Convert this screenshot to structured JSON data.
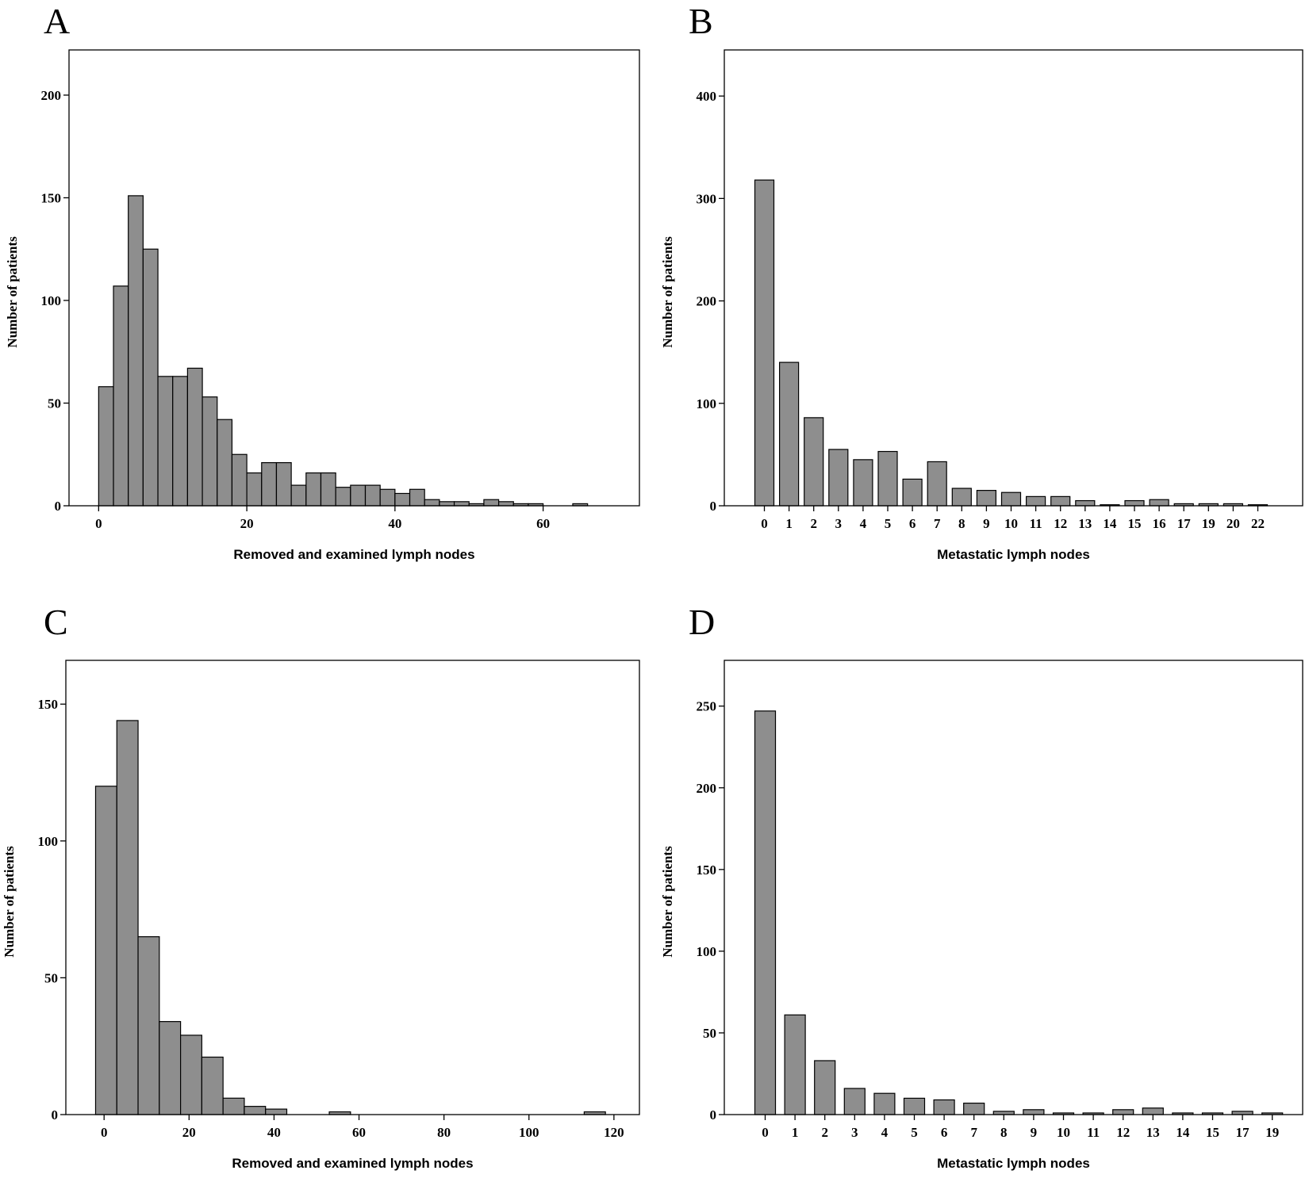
{
  "chart_data": [
    {
      "panel": "A",
      "type": "bar",
      "subtype": "histogram",
      "xlabel": "Removed and examined lymph nodes",
      "ylabel": "Number of patients",
      "xlim": [
        -4,
        73
      ],
      "ylim": [
        0,
        222
      ],
      "xticks": [
        0,
        20,
        40,
        60
      ],
      "yticks": [
        0,
        50,
        100,
        150,
        200
      ],
      "bin_width": 2,
      "bin_starts": [
        0,
        2,
        4,
        6,
        8,
        10,
        12,
        14,
        16,
        18,
        20,
        22,
        24,
        26,
        28,
        30,
        32,
        34,
        36,
        38,
        40,
        42,
        44,
        46,
        48,
        50,
        52,
        54,
        56,
        58,
        60,
        62,
        64
      ],
      "values": [
        58,
        107,
        151,
        125,
        63,
        63,
        67,
        53,
        42,
        25,
        16,
        21,
        21,
        10,
        16,
        16,
        9,
        10,
        10,
        8,
        6,
        8,
        3,
        2,
        2,
        1,
        3,
        2,
        1,
        1,
        0,
        0,
        1
      ]
    },
    {
      "panel": "B",
      "type": "bar",
      "xlabel": "Metastatic lymph nodes",
      "ylabel": "Number of patients",
      "ylim": [
        0,
        445
      ],
      "yticks": [
        0,
        100,
        200,
        300,
        400
      ],
      "categories": [
        "0",
        "1",
        "2",
        "3",
        "4",
        "5",
        "6",
        "7",
        "8",
        "9",
        "10",
        "11",
        "12",
        "13",
        "14",
        "15",
        "16",
        "17",
        "19",
        "20",
        "22"
      ],
      "values": [
        318,
        140,
        86,
        55,
        45,
        53,
        26,
        43,
        17,
        15,
        13,
        9,
        9,
        5,
        1,
        5,
        6,
        2,
        2,
        2,
        1
      ]
    },
    {
      "panel": "C",
      "type": "bar",
      "subtype": "histogram",
      "xlabel": "Removed and examined lymph nodes",
      "ylabel": "Number of patients",
      "xlim": [
        -9,
        126
      ],
      "ylim": [
        0,
        166
      ],
      "xticks": [
        0,
        20,
        40,
        60,
        80,
        100,
        120
      ],
      "yticks": [
        0,
        50,
        100,
        150
      ],
      "bin_width": 5,
      "bin_starts": [
        -2,
        3,
        8,
        13,
        18,
        23,
        28,
        33,
        38,
        43,
        48,
        53,
        58,
        63,
        68,
        73,
        78,
        83,
        88,
        93,
        98,
        103,
        108,
        113
      ],
      "values": [
        120,
        144,
        65,
        34,
        29,
        21,
        6,
        3,
        2,
        0,
        0,
        1,
        0,
        0,
        0,
        0,
        0,
        0,
        0,
        0,
        0,
        0,
        0,
        1
      ]
    },
    {
      "panel": "D",
      "type": "bar",
      "xlabel": "Metastatic lymph nodes",
      "ylabel": "Number of patients",
      "ylim": [
        0,
        278
      ],
      "yticks": [
        0,
        50,
        100,
        150,
        200,
        250
      ],
      "categories": [
        "0",
        "1",
        "2",
        "3",
        "4",
        "5",
        "6",
        "7",
        "8",
        "9",
        "10",
        "11",
        "12",
        "13",
        "14",
        "15",
        "17",
        "19"
      ],
      "values": [
        247,
        61,
        33,
        16,
        13,
        10,
        9,
        7,
        2,
        3,
        1,
        1,
        3,
        4,
        1,
        1,
        2,
        1
      ]
    }
  ]
}
